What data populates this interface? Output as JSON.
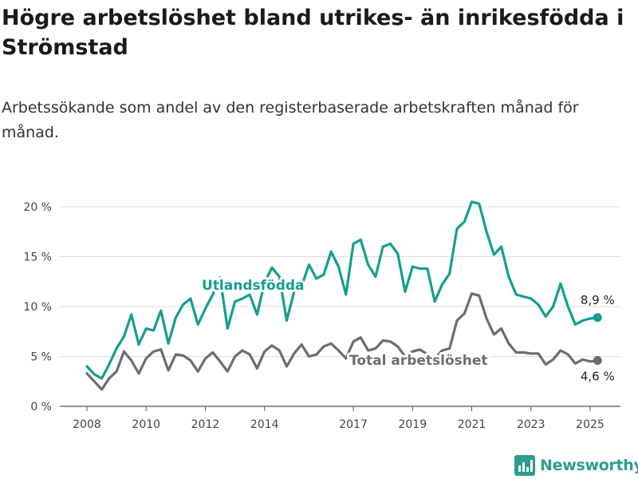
{
  "title": "Högre arbetslöshet bland utrikes- än inrikesfödda i Strömstad",
  "subtitle": "Arbetssökande som andel av den registerbaserade arbetskraften månad för månad.",
  "logo_text": "Newsworthy",
  "logo_icon": "bar-chart-icon",
  "chart_data": {
    "type": "line",
    "xlabel": "",
    "ylabel": "",
    "ylim": [
      0,
      20
    ],
    "xlim": [
      "2008-01",
      "2025-04"
    ],
    "grid": true,
    "y_ticks": [
      0,
      5,
      10,
      15,
      20
    ],
    "y_tick_labels": [
      "0 %",
      "5 %",
      "10 %",
      "15 %",
      "20 %"
    ],
    "x_ticks": [
      "2008-01",
      "2010-01",
      "2012-01",
      "2014-01",
      "2017-01",
      "2019-01",
      "2021-01",
      "2023-01",
      "2025-01"
    ],
    "x_tick_labels": [
      "2008",
      "2010",
      "2012",
      "2014",
      "2017",
      "2019",
      "2021",
      "2023",
      "2025"
    ],
    "series": [
      {
        "name": "Utlandsfödda",
        "color": "#159e91",
        "end_label": "8,9 %",
        "points": [
          [
            "2008-01",
            4.0
          ],
          [
            "2008-04",
            3.2
          ],
          [
            "2008-07",
            2.8
          ],
          [
            "2008-10",
            4.2
          ],
          [
            "2009-01",
            5.8
          ],
          [
            "2009-04",
            7.0
          ],
          [
            "2009-07",
            9.2
          ],
          [
            "2009-10",
            6.2
          ],
          [
            "2010-01",
            7.8
          ],
          [
            "2010-04",
            7.6
          ],
          [
            "2010-07",
            9.6
          ],
          [
            "2010-10",
            6.3
          ],
          [
            "2011-01",
            8.9
          ],
          [
            "2011-04",
            10.2
          ],
          [
            "2011-07",
            10.8
          ],
          [
            "2011-10",
            8.2
          ],
          [
            "2012-01",
            9.8
          ],
          [
            "2012-04",
            11.2
          ],
          [
            "2012-07",
            12.9
          ],
          [
            "2012-10",
            7.8
          ],
          [
            "2013-01",
            10.5
          ],
          [
            "2013-04",
            10.8
          ],
          [
            "2013-07",
            11.2
          ],
          [
            "2013-10",
            9.2
          ],
          [
            "2014-01",
            12.4
          ],
          [
            "2014-04",
            13.9
          ],
          [
            "2014-07",
            13.0
          ],
          [
            "2014-10",
            8.6
          ],
          [
            "2015-01",
            11.5
          ],
          [
            "2015-04",
            12.0
          ],
          [
            "2015-07",
            14.2
          ],
          [
            "2015-10",
            12.8
          ],
          [
            "2016-01",
            13.2
          ],
          [
            "2016-04",
            15.5
          ],
          [
            "2016-07",
            14.0
          ],
          [
            "2016-10",
            11.2
          ],
          [
            "2017-01",
            16.3
          ],
          [
            "2017-04",
            16.7
          ],
          [
            "2017-07",
            14.2
          ],
          [
            "2017-10",
            13.0
          ],
          [
            "2018-01",
            16.0
          ],
          [
            "2018-04",
            16.3
          ],
          [
            "2018-07",
            15.3
          ],
          [
            "2018-10",
            11.5
          ],
          [
            "2019-01",
            14.0
          ],
          [
            "2019-04",
            13.8
          ],
          [
            "2019-07",
            13.8
          ],
          [
            "2019-10",
            10.5
          ],
          [
            "2020-01",
            12.2
          ],
          [
            "2020-04",
            13.3
          ],
          [
            "2020-07",
            17.8
          ],
          [
            "2020-10",
            18.5
          ],
          [
            "2021-01",
            20.5
          ],
          [
            "2021-04",
            20.3
          ],
          [
            "2021-07",
            17.5
          ],
          [
            "2021-10",
            15.2
          ],
          [
            "2022-01",
            16.0
          ],
          [
            "2022-04",
            13.0
          ],
          [
            "2022-07",
            11.2
          ],
          [
            "2022-10",
            11.0
          ],
          [
            "2023-01",
            10.8
          ],
          [
            "2023-04",
            10.2
          ],
          [
            "2023-07",
            9.0
          ],
          [
            "2023-10",
            10.0
          ],
          [
            "2024-01",
            12.3
          ],
          [
            "2024-04",
            10.0
          ],
          [
            "2024-07",
            8.2
          ],
          [
            "2024-10",
            8.6
          ],
          [
            "2025-01",
            8.8
          ],
          [
            "2025-04",
            8.9
          ]
        ]
      },
      {
        "name": "Total arbetslöshet",
        "color": "#6e6e6e",
        "end_label": "4,6 %",
        "points": [
          [
            "2008-01",
            3.3
          ],
          [
            "2008-04",
            2.5
          ],
          [
            "2008-07",
            1.7
          ],
          [
            "2008-10",
            2.8
          ],
          [
            "2009-01",
            3.5
          ],
          [
            "2009-04",
            5.5
          ],
          [
            "2009-07",
            4.6
          ],
          [
            "2009-10",
            3.3
          ],
          [
            "2010-01",
            4.8
          ],
          [
            "2010-04",
            5.5
          ],
          [
            "2010-07",
            5.7
          ],
          [
            "2010-10",
            3.6
          ],
          [
            "2011-01",
            5.2
          ],
          [
            "2011-04",
            5.1
          ],
          [
            "2011-07",
            4.6
          ],
          [
            "2011-10",
            3.5
          ],
          [
            "2012-01",
            4.8
          ],
          [
            "2012-04",
            5.4
          ],
          [
            "2012-07",
            4.5
          ],
          [
            "2012-10",
            3.5
          ],
          [
            "2013-01",
            5.0
          ],
          [
            "2013-04",
            5.6
          ],
          [
            "2013-07",
            5.2
          ],
          [
            "2013-10",
            3.8
          ],
          [
            "2014-01",
            5.5
          ],
          [
            "2014-04",
            6.1
          ],
          [
            "2014-07",
            5.6
          ],
          [
            "2014-10",
            4.0
          ],
          [
            "2015-01",
            5.3
          ],
          [
            "2015-04",
            6.2
          ],
          [
            "2015-07",
            5.0
          ],
          [
            "2015-10",
            5.2
          ],
          [
            "2016-01",
            6.0
          ],
          [
            "2016-04",
            6.3
          ],
          [
            "2016-07",
            5.6
          ],
          [
            "2016-10",
            4.8
          ],
          [
            "2017-01",
            6.5
          ],
          [
            "2017-04",
            6.9
          ],
          [
            "2017-07",
            5.6
          ],
          [
            "2017-10",
            5.8
          ],
          [
            "2018-01",
            6.6
          ],
          [
            "2018-04",
            6.5
          ],
          [
            "2018-07",
            6.0
          ],
          [
            "2018-10",
            5.0
          ],
          [
            "2019-01",
            5.5
          ],
          [
            "2019-04",
            5.7
          ],
          [
            "2019-07",
            5.2
          ],
          [
            "2019-10",
            4.8
          ],
          [
            "2020-01",
            5.6
          ],
          [
            "2020-04",
            5.8
          ],
          [
            "2020-07",
            8.6
          ],
          [
            "2020-10",
            9.3
          ],
          [
            "2021-01",
            11.3
          ],
          [
            "2021-04",
            11.1
          ],
          [
            "2021-07",
            8.8
          ],
          [
            "2021-10",
            7.2
          ],
          [
            "2022-01",
            7.8
          ],
          [
            "2022-04",
            6.3
          ],
          [
            "2022-07",
            5.4
          ],
          [
            "2022-10",
            5.4
          ],
          [
            "2023-01",
            5.3
          ],
          [
            "2023-04",
            5.3
          ],
          [
            "2023-07",
            4.2
          ],
          [
            "2023-10",
            4.7
          ],
          [
            "2024-01",
            5.6
          ],
          [
            "2024-04",
            5.2
          ],
          [
            "2024-07",
            4.3
          ],
          [
            "2024-10",
            4.7
          ],
          [
            "2025-01",
            4.5
          ],
          [
            "2025-04",
            4.6
          ]
        ]
      }
    ]
  }
}
